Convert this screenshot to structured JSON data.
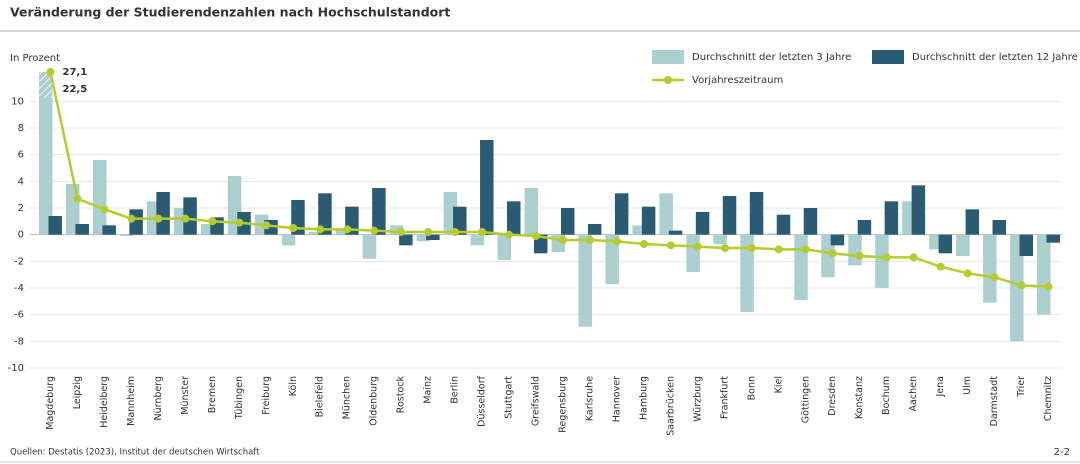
{
  "chart_data": {
    "type": "bar",
    "title": "Veränderung der Studierendenzahlen nach Hochschulstandort",
    "y_label": "In Prozent",
    "source": "Quellen: Destatis (2023), Institut der deutschen Wirtschaft",
    "page_number": "2-2",
    "categories": [
      "Magdeburg",
      "Leipzig",
      "Heidelberg",
      "Mannheim",
      "Nürnberg",
      "Münster",
      "Bremen",
      "Tübingen",
      "Freiburg",
      "Köln",
      "Bielefeld",
      "München",
      "Oldenburg",
      "Rostock",
      "Mainz",
      "Berlin",
      "Düsseldorf",
      "Stuttgart",
      "Greifswald",
      "Regensburg",
      "Karlsruhe",
      "Hannover",
      "Hamburg",
      "Saarbrücken",
      "Würzburg",
      "Frankfurt",
      "Bonn",
      "Kiel",
      "Göttingen",
      "Dresden",
      "Konstanz",
      "Bochum",
      "Aachen",
      "Jena",
      "Ulm",
      "Darmstadt",
      "Trier",
      "Chemnitz"
    ],
    "category_colors": [
      "#333",
      "#333",
      "#333",
      "#333",
      "#333",
      "#333",
      "#333",
      "#333",
      "#333",
      "#a89a80",
      "#333",
      "#a89a80",
      "#333",
      "#333",
      "#333",
      "#a89a80",
      "#a89a80",
      "#a89a80",
      "#333",
      "#333",
      "#333",
      "#333",
      "#a89a80",
      "#333",
      "#333",
      "#a89a80",
      "#333",
      "#333",
      "#333",
      "#333",
      "#333",
      "#333",
      "#333",
      "#333",
      "#333",
      "#333",
      "#333",
      "#333"
    ],
    "series": [
      {
        "name": "Durchschnitt der letzten 3 Jahre",
        "type": "bar",
        "color": "#abcfcf",
        "values": [
          22.5,
          3.8,
          5.6,
          -0.1,
          2.5,
          2.0,
          0.8,
          4.4,
          1.5,
          -0.8,
          0.2,
          0.4,
          -1.8,
          0.7,
          -0.5,
          3.2,
          -0.8,
          -1.9,
          3.5,
          -1.3,
          -6.9,
          -3.7,
          0.7,
          3.1,
          -2.8,
          -0.7,
          -5.8,
          0.1,
          -4.9,
          -3.2,
          -2.3,
          -4.0,
          2.5,
          -1.1,
          -1.6,
          -5.1,
          -8.0,
          -6.0
        ],
        "value_labels": [
          "22,5",
          null,
          null,
          null,
          null,
          null,
          null,
          null,
          null,
          null,
          null,
          null,
          null,
          null,
          null,
          null,
          null,
          null,
          null,
          null,
          null,
          null,
          null,
          null,
          null,
          null,
          null,
          null,
          null,
          null,
          null,
          null,
          null,
          null,
          null,
          null,
          null,
          null
        ]
      },
      {
        "name": "Durchschnitt der letzten 12 Jahre",
        "type": "bar",
        "color": "#2b5a73",
        "values": [
          1.4,
          0.8,
          0.7,
          1.9,
          3.2,
          2.8,
          1.3,
          1.7,
          1.1,
          2.6,
          3.1,
          2.1,
          3.5,
          -0.8,
          -0.4,
          2.1,
          7.1,
          2.5,
          -1.4,
          2.0,
          0.8,
          3.1,
          2.1,
          0.3,
          1.7,
          2.9,
          3.2,
          1.5,
          2.0,
          -0.8,
          1.1,
          2.5,
          3.7,
          -1.4,
          1.9,
          1.1,
          -1.6,
          -0.6
        ]
      },
      {
        "name": "Vorjahreszeitraum",
        "type": "line",
        "color": "#b5cc2e",
        "values": [
          27.1,
          2.7,
          1.9,
          1.2,
          1.2,
          1.2,
          1.0,
          0.9,
          0.7,
          0.5,
          0.4,
          0.4,
          0.3,
          0.2,
          0.2,
          0.2,
          0.2,
          0.0,
          -0.1,
          -0.4,
          -0.4,
          -0.5,
          -0.7,
          -0.8,
          -0.9,
          -1.0,
          -1.0,
          -1.1,
          -1.1,
          -1.4,
          -1.6,
          -1.7,
          -1.7,
          -2.4,
          -2.9,
          -3.2,
          -3.8,
          -3.9
        ],
        "value_labels": [
          "27,1",
          null,
          null,
          null,
          null,
          null,
          null,
          null,
          null,
          null,
          null,
          null,
          null,
          null,
          null,
          null,
          null,
          null,
          null,
          null,
          null,
          null,
          null,
          null,
          null,
          null,
          null,
          null,
          null,
          null,
          null,
          null,
          null,
          null,
          null,
          null,
          null,
          null
        ]
      }
    ],
    "ylim": [
      -10,
      12.2
    ],
    "yticks": [
      -10,
      -8,
      -6,
      -4,
      -2,
      0,
      2,
      4,
      6,
      8,
      10
    ],
    "grid": true,
    "legend": "top-right"
  }
}
